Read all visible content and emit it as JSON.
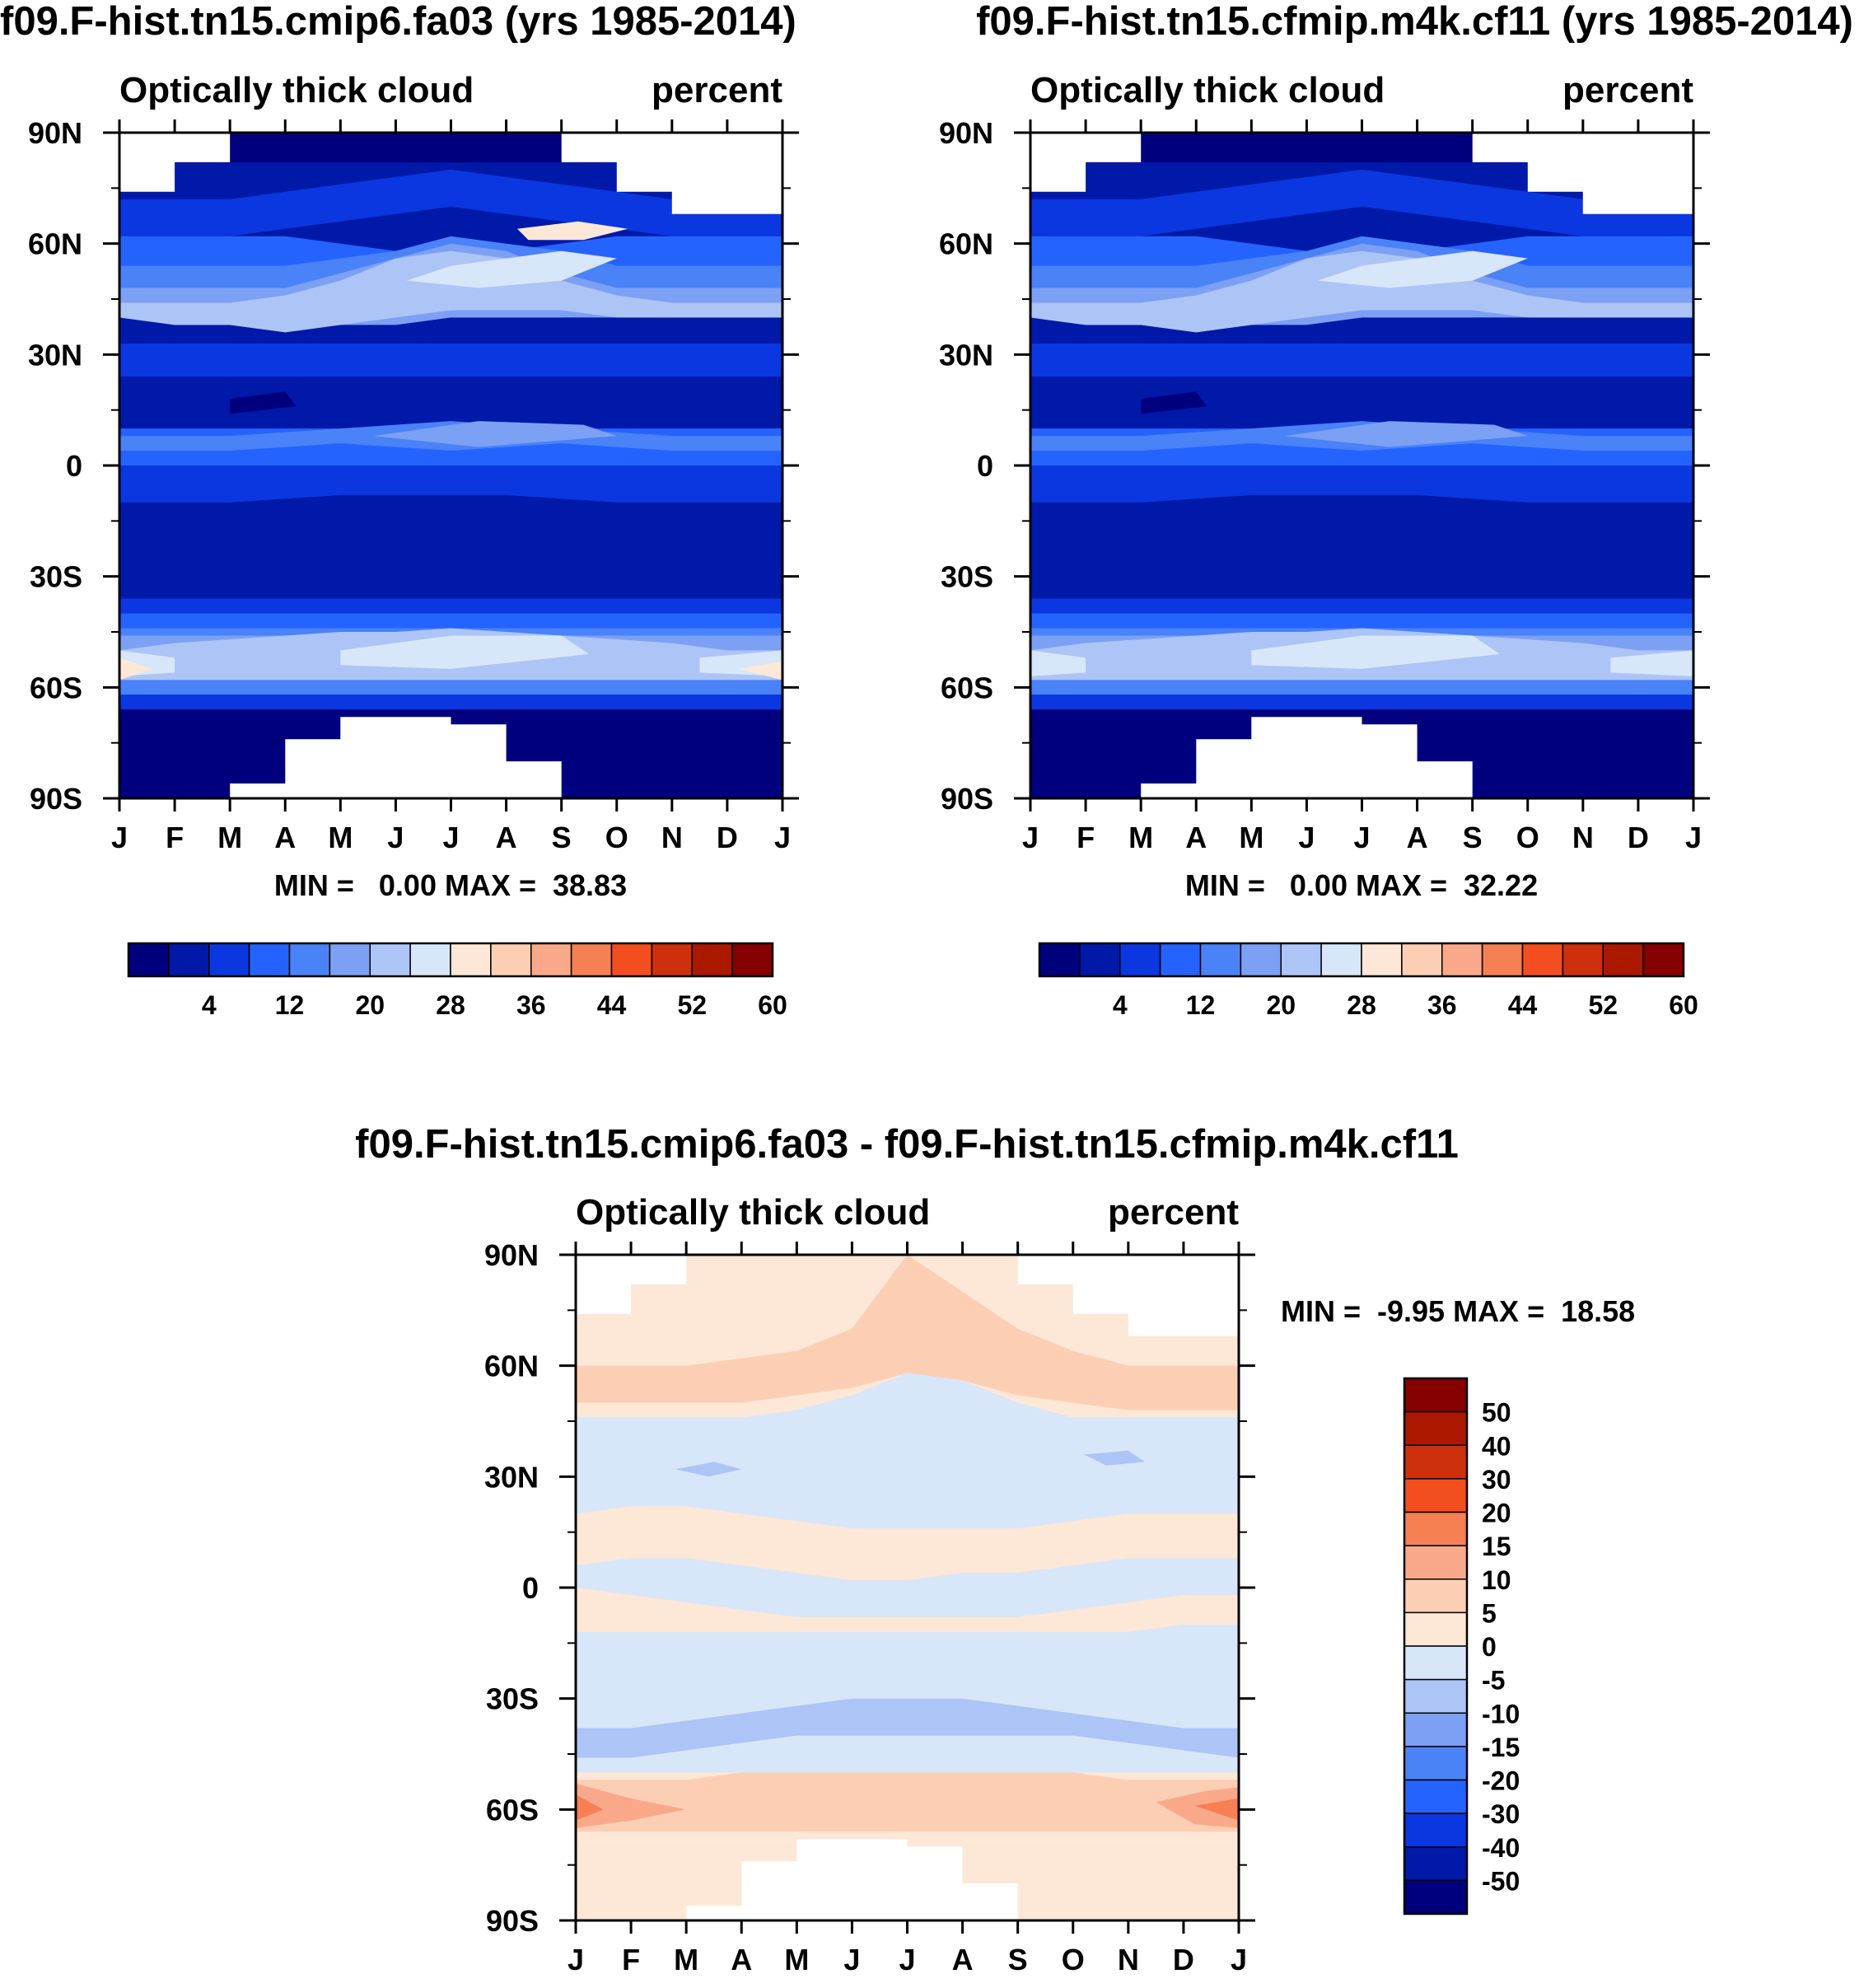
{
  "chart_data": [
    {
      "type": "heatmap",
      "title": "f09.F-hist.tn15.cmip6.fa03 (yrs 1985-2014)",
      "subtitle_left": "Optically thick cloud",
      "subtitle_right": "percent",
      "stats": "MIN =   0.00 MAX =  38.83",
      "x_tick_labels": [
        "J",
        "F",
        "M",
        "A",
        "M",
        "J",
        "J",
        "A",
        "S",
        "O",
        "N",
        "D",
        "J"
      ],
      "y_tick_labels": [
        "90N",
        "60N",
        "30N",
        "0",
        "30S",
        "60S",
        "90S"
      ],
      "ylim": [
        -90,
        90
      ],
      "colorbar_labels": [
        "4",
        "12",
        "20",
        "28",
        "36",
        "44",
        "52",
        "60"
      ],
      "colorbar_colors": [
        "#00007f",
        "#0019a8",
        "#0a37e0",
        "#2563ff",
        "#4a82f8",
        "#7ca0f4",
        "#adc4f6",
        "#d8e6f9",
        "#fde7d6",
        "#fccfb5",
        "#f9a98a",
        "#f77f54",
        "#f24e1f",
        "#cd300c",
        "#aa1800",
        "#850000"
      ]
    },
    {
      "type": "heatmap",
      "title": "f09.F-hist.tn15.cfmip.m4k.cf11 (yrs 1985-2014)",
      "subtitle_left": "Optically thick cloud",
      "subtitle_right": "percent",
      "stats": "MIN =   0.00 MAX =  32.22",
      "x_tick_labels": [
        "J",
        "F",
        "M",
        "A",
        "M",
        "J",
        "J",
        "A",
        "S",
        "O",
        "N",
        "D",
        "J"
      ],
      "y_tick_labels": [
        "90N",
        "60N",
        "30N",
        "0",
        "30S",
        "60S",
        "90S"
      ],
      "ylim": [
        -90,
        90
      ],
      "colorbar_labels": [
        "4",
        "12",
        "20",
        "28",
        "36",
        "44",
        "52",
        "60"
      ],
      "colorbar_colors": [
        "#00007f",
        "#0019a8",
        "#0a37e0",
        "#2563ff",
        "#4a82f8",
        "#7ca0f4",
        "#adc4f6",
        "#d8e6f9",
        "#fde7d6",
        "#fccfb5",
        "#f9a98a",
        "#f77f54",
        "#f24e1f",
        "#cd300c",
        "#aa1800",
        "#850000"
      ]
    },
    {
      "type": "heatmap",
      "title": "f09.F-hist.tn15.cmip6.fa03 - f09.F-hist.tn15.cfmip.m4k.cf11",
      "subtitle_left": "Optically thick cloud",
      "subtitle_right": "percent",
      "stats": "MIN =  -9.95 MAX =  18.58",
      "x_tick_labels": [
        "J",
        "F",
        "M",
        "A",
        "M",
        "J",
        "J",
        "A",
        "S",
        "O",
        "N",
        "D",
        "J"
      ],
      "y_tick_labels": [
        "90N",
        "60N",
        "30N",
        "0",
        "30S",
        "60S",
        "90S"
      ],
      "ylim": [
        -90,
        90
      ],
      "colorbar_labels": [
        "50",
        "40",
        "30",
        "20",
        "15",
        "10",
        "5",
        "0",
        "-5",
        "-10",
        "-15",
        "-20",
        "-30",
        "-40",
        "-50"
      ],
      "colorbar_colors": [
        "#850000",
        "#aa1800",
        "#cd300c",
        "#f24e1f",
        "#f77f54",
        "#f9a98a",
        "#fccfb5",
        "#fde7d6",
        "#d8e6f9",
        "#adc4f6",
        "#7ca0f4",
        "#4a82f8",
        "#2563ff",
        "#0a37e0",
        "#0019a8",
        "#00007f"
      ]
    }
  ]
}
